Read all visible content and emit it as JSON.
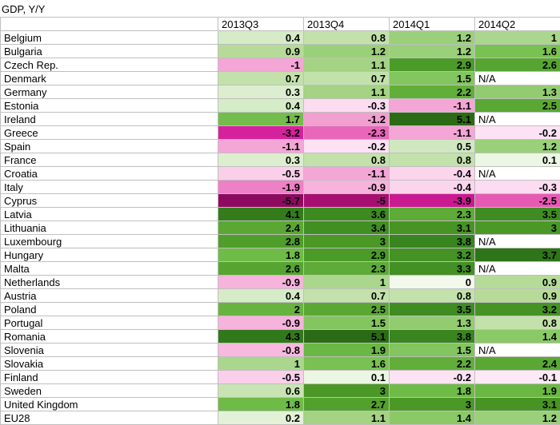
{
  "title": "GDP, Y/Y",
  "columns": [
    "2013Q3",
    "2013Q4",
    "2014Q1",
    "2014Q2"
  ],
  "na_label": "N/A",
  "rows": [
    {
      "label": "Belgium",
      "cells": [
        {
          "v": "0.4",
          "c": "#d6ebc8"
        },
        {
          "v": "0.8",
          "c": "#c3e1ab"
        },
        {
          "v": "1.2",
          "c": "#9bd07a"
        },
        {
          "v": "1",
          "c": "#aad78d"
        }
      ]
    },
    {
      "label": "Bulgaria",
      "cells": [
        {
          "v": "0.9",
          "c": "#b6db99"
        },
        {
          "v": "1.2",
          "c": "#9bd07a"
        },
        {
          "v": "1.2",
          "c": "#9bd07a"
        },
        {
          "v": "1.6",
          "c": "#79c152"
        }
      ]
    },
    {
      "label": "Czech Rep.",
      "cells": [
        {
          "v": "-1",
          "c": "#f4a6d6"
        },
        {
          "v": "1.1",
          "c": "#a3d383"
        },
        {
          "v": "2.9",
          "c": "#4b9b28"
        },
        {
          "v": "2.6",
          "c": "#56a531"
        }
      ]
    },
    {
      "label": "Denmark",
      "cells": [
        {
          "v": "0.7",
          "c": "#c3e1ab"
        },
        {
          "v": "0.7",
          "c": "#c3e1ab"
        },
        {
          "v": "1.5",
          "c": "#83c55e"
        },
        {
          "v": "N/A"
        }
      ]
    },
    {
      "label": "Germany",
      "cells": [
        {
          "v": "0.3",
          "c": "#dceecf"
        },
        {
          "v": "1.1",
          "c": "#a3d383"
        },
        {
          "v": "2.2",
          "c": "#62ae3a"
        },
        {
          "v": "1.3",
          "c": "#93cc70"
        }
      ]
    },
    {
      "label": "Estonia",
      "cells": [
        {
          "v": "0.4",
          "c": "#d6ebc8"
        },
        {
          "v": "-0.3",
          "c": "#fbdcf0"
        },
        {
          "v": "-1.1",
          "c": "#f4a6d6"
        },
        {
          "v": "2.5",
          "c": "#5aa833"
        }
      ]
    },
    {
      "label": "Ireland",
      "cells": [
        {
          "v": "1.7",
          "c": "#73bd4c"
        },
        {
          "v": "-1.2",
          "c": "#f29fd2"
        },
        {
          "v": "5.1",
          "c": "#2b6b15"
        },
        {
          "v": "N/A"
        }
      ]
    },
    {
      "label": "Greece",
      "cells": [
        {
          "v": "-3.2",
          "c": "#d6219c"
        },
        {
          "v": "-2.3",
          "c": "#e967bb"
        },
        {
          "v": "-1.1",
          "c": "#f4a6d6"
        },
        {
          "v": "-0.2",
          "c": "#fce2f3"
        }
      ]
    },
    {
      "label": "Spain",
      "cells": [
        {
          "v": "-1.1",
          "c": "#f4a6d6"
        },
        {
          "v": "-0.2",
          "c": "#fce2f3"
        },
        {
          "v": "0.5",
          "c": "#d0e8c0"
        },
        {
          "v": "1.2",
          "c": "#9bd07a"
        }
      ]
    },
    {
      "label": "France",
      "cells": [
        {
          "v": "0.3",
          "c": "#dceecf"
        },
        {
          "v": "0.8",
          "c": "#c3e1ab"
        },
        {
          "v": "0.8",
          "c": "#c3e1ab"
        },
        {
          "v": "0.1",
          "c": "#ecf6e4"
        }
      ]
    },
    {
      "label": "Croatia",
      "cells": [
        {
          "v": "-0.5",
          "c": "#f9cfea"
        },
        {
          "v": "-1.1",
          "c": "#f4a6d6"
        },
        {
          "v": "-0.4",
          "c": "#fad5ec"
        },
        {
          "v": "N/A"
        }
      ]
    },
    {
      "label": "Italy",
      "cells": [
        {
          "v": "-1.9",
          "c": "#ee80c6"
        },
        {
          "v": "-0.9",
          "c": "#f6b3dc"
        },
        {
          "v": "-0.4",
          "c": "#fad5ec"
        },
        {
          "v": "-0.3",
          "c": "#fbdcf0"
        }
      ]
    },
    {
      "label": "Cyprus",
      "cells": [
        {
          "v": "-5.7",
          "c": "#8e0a60"
        },
        {
          "v": "-5",
          "c": "#a60f71"
        },
        {
          "v": "-3.9",
          "c": "#c91a91"
        },
        {
          "v": "-2.5",
          "c": "#e75ab4"
        }
      ]
    },
    {
      "label": "Latvia",
      "cells": [
        {
          "v": "4.1",
          "c": "#347b1c"
        },
        {
          "v": "3.6",
          "c": "#3d8a21"
        },
        {
          "v": "2.3",
          "c": "#5eab37"
        },
        {
          "v": "3.5",
          "c": "#3f8c22"
        }
      ]
    },
    {
      "label": "Lithuania",
      "cells": [
        {
          "v": "2.4",
          "c": "#5aa833"
        },
        {
          "v": "3.4",
          "c": "#418e23"
        },
        {
          "v": "3.1",
          "c": "#479425"
        },
        {
          "v": "3",
          "c": "#4b9826"
        }
      ]
    },
    {
      "label": "Luxembourg",
      "cells": [
        {
          "v": "2.8",
          "c": "#4f9e29"
        },
        {
          "v": "3",
          "c": "#4b9826"
        },
        {
          "v": "3.8",
          "c": "#39851f"
        },
        {
          "v": "N/A"
        }
      ]
    },
    {
      "label": "Hungary",
      "cells": [
        {
          "v": "1.8",
          "c": "#6fbb48"
        },
        {
          "v": "2.9",
          "c": "#4b9b28"
        },
        {
          "v": "3.2",
          "c": "#459225"
        },
        {
          "v": "3.7",
          "c": "#2e7418"
        }
      ]
    },
    {
      "label": "Malta",
      "cells": [
        {
          "v": "2.6",
          "c": "#56a531"
        },
        {
          "v": "2.3",
          "c": "#5eab37"
        },
        {
          "v": "3.3",
          "c": "#439024"
        },
        {
          "v": "N/A"
        }
      ]
    },
    {
      "label": "Netherlands",
      "cells": [
        {
          "v": "-0.9",
          "c": "#f6b3dc"
        },
        {
          "v": "1",
          "c": "#aad78d"
        },
        {
          "v": "0",
          "c": "#f2f9ec"
        },
        {
          "v": "0.9",
          "c": "#b6db99"
        }
      ]
    },
    {
      "label": "Austria",
      "cells": [
        {
          "v": "0.4",
          "c": "#d6ebc8"
        },
        {
          "v": "0.7",
          "c": "#c3e1ab"
        },
        {
          "v": "0.8",
          "c": "#c3e1ab"
        },
        {
          "v": "0.9",
          "c": "#b6db99"
        }
      ]
    },
    {
      "label": "Poland",
      "cells": [
        {
          "v": "2",
          "c": "#68b340"
        },
        {
          "v": "2.5",
          "c": "#5aa833"
        },
        {
          "v": "3.5",
          "c": "#3f8c22"
        },
        {
          "v": "3.2",
          "c": "#459225"
        }
      ]
    },
    {
      "label": "Portugal",
      "cells": [
        {
          "v": "-0.9",
          "c": "#f6b3dc"
        },
        {
          "v": "1.5",
          "c": "#83c55e"
        },
        {
          "v": "1.3",
          "c": "#93cc70"
        },
        {
          "v": "0.8",
          "c": "#c3e1ab"
        }
      ]
    },
    {
      "label": "Romania",
      "cells": [
        {
          "v": "4.3",
          "c": "#31781a"
        },
        {
          "v": "5.1",
          "c": "#2b6b15"
        },
        {
          "v": "3.8",
          "c": "#39851f"
        },
        {
          "v": "1.4",
          "c": "#8bc966"
        }
      ]
    },
    {
      "label": "Slovenia",
      "cells": [
        {
          "v": "-0.8",
          "c": "#f7b9df"
        },
        {
          "v": "1.9",
          "c": "#6bb744"
        },
        {
          "v": "1.5",
          "c": "#83c55e"
        },
        {
          "v": "N/A"
        }
      ]
    },
    {
      "label": "Slovakia",
      "cells": [
        {
          "v": "1",
          "c": "#aad78d"
        },
        {
          "v": "1.6",
          "c": "#79c152"
        },
        {
          "v": "2.2",
          "c": "#62ae3a"
        },
        {
          "v": "2.4",
          "c": "#5aa833"
        }
      ]
    },
    {
      "label": "Finland",
      "cells": [
        {
          "v": "-0.5",
          "c": "#f9cfea"
        },
        {
          "v": "0.1",
          "c": "#ecf6e4"
        },
        {
          "v": "-0.2",
          "c": "#fce2f3"
        },
        {
          "v": "-0.1",
          "c": "#fde9f6"
        }
      ]
    },
    {
      "label": "Sweden",
      "cells": [
        {
          "v": "0.6",
          "c": "#c9e4b3"
        },
        {
          "v": "3",
          "c": "#4b9826"
        },
        {
          "v": "1.8",
          "c": "#6fbb48"
        },
        {
          "v": "1.9",
          "c": "#6bb744"
        }
      ]
    },
    {
      "label": "United Kingdom",
      "cells": [
        {
          "v": "1.8",
          "c": "#6fbb48"
        },
        {
          "v": "2.7",
          "c": "#52a12c"
        },
        {
          "v": "3",
          "c": "#4b9826"
        },
        {
          "v": "3.1",
          "c": "#479425"
        }
      ]
    },
    {
      "label": "EU28",
      "cells": [
        {
          "v": "0.2",
          "c": "#e3f1d8"
        },
        {
          "v": "1.1",
          "c": "#a3d383"
        },
        {
          "v": "1.4",
          "c": "#8bc966"
        },
        {
          "v": "1.2",
          "c": "#9bd07a"
        }
      ]
    }
  ]
}
